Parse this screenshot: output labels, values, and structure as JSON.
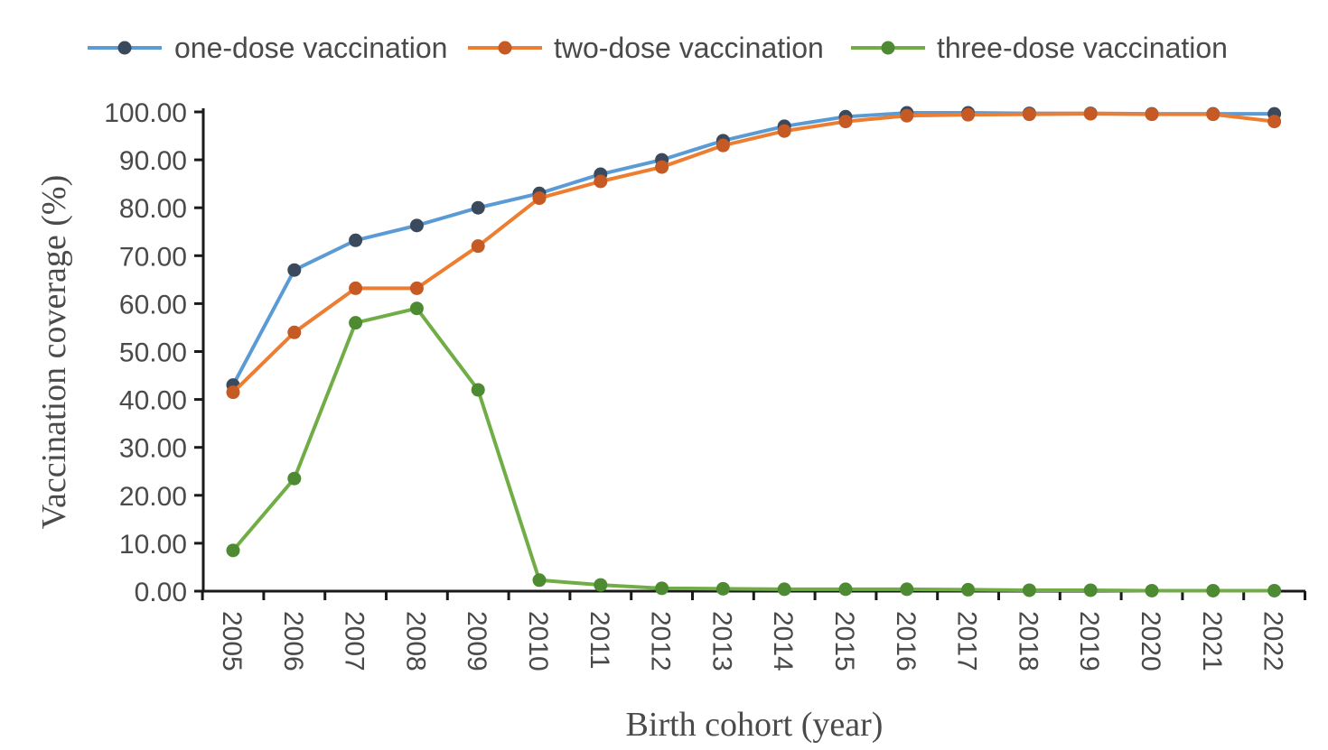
{
  "chart_data": {
    "type": "line",
    "title": "",
    "xlabel": "Birth cohort (year)",
    "ylabel": "Vaccination coverage (%)",
    "ylim": [
      0,
      100
    ],
    "ytick_step": 10,
    "ytick_labels": [
      "0.00",
      "10.00",
      "20.00",
      "30.00",
      "40.00",
      "50.00",
      "60.00",
      "70.00",
      "80.00",
      "90.00",
      "100.00"
    ],
    "grid": false,
    "legend_position": "top",
    "categories": [
      "2005",
      "2006",
      "2007",
      "2008",
      "2009",
      "2010",
      "2011",
      "2012",
      "2013",
      "2014",
      "2015",
      "2016",
      "2017",
      "2018",
      "2019",
      "2020",
      "2021",
      "2022"
    ],
    "series": [
      {
        "name": "one-dose vaccination",
        "color": "#5b9bd5",
        "marker_color": "#3a4a5c",
        "values": [
          43.0,
          67.0,
          73.2,
          76.3,
          80.0,
          83.0,
          87.0,
          90.0,
          94.0,
          97.0,
          99.0,
          99.8,
          99.8,
          99.7,
          99.7,
          99.6,
          99.6,
          99.6
        ]
      },
      {
        "name": "two-dose vaccination",
        "color": "#ed7d31",
        "marker_color": "#c55a24",
        "values": [
          41.5,
          54.0,
          63.2,
          63.2,
          72.0,
          82.0,
          85.5,
          88.5,
          93.0,
          96.0,
          98.0,
          99.2,
          99.4,
          99.5,
          99.6,
          99.5,
          99.5,
          98.0
        ]
      },
      {
        "name": "three-dose vaccination",
        "color": "#70ad47",
        "marker_color": "#4e8a32",
        "values": [
          8.5,
          23.5,
          56.0,
          59.0,
          42.0,
          2.3,
          1.3,
          0.6,
          0.5,
          0.4,
          0.4,
          0.4,
          0.3,
          0.2,
          0.2,
          0.1,
          0.1,
          0.1
        ]
      }
    ]
  }
}
